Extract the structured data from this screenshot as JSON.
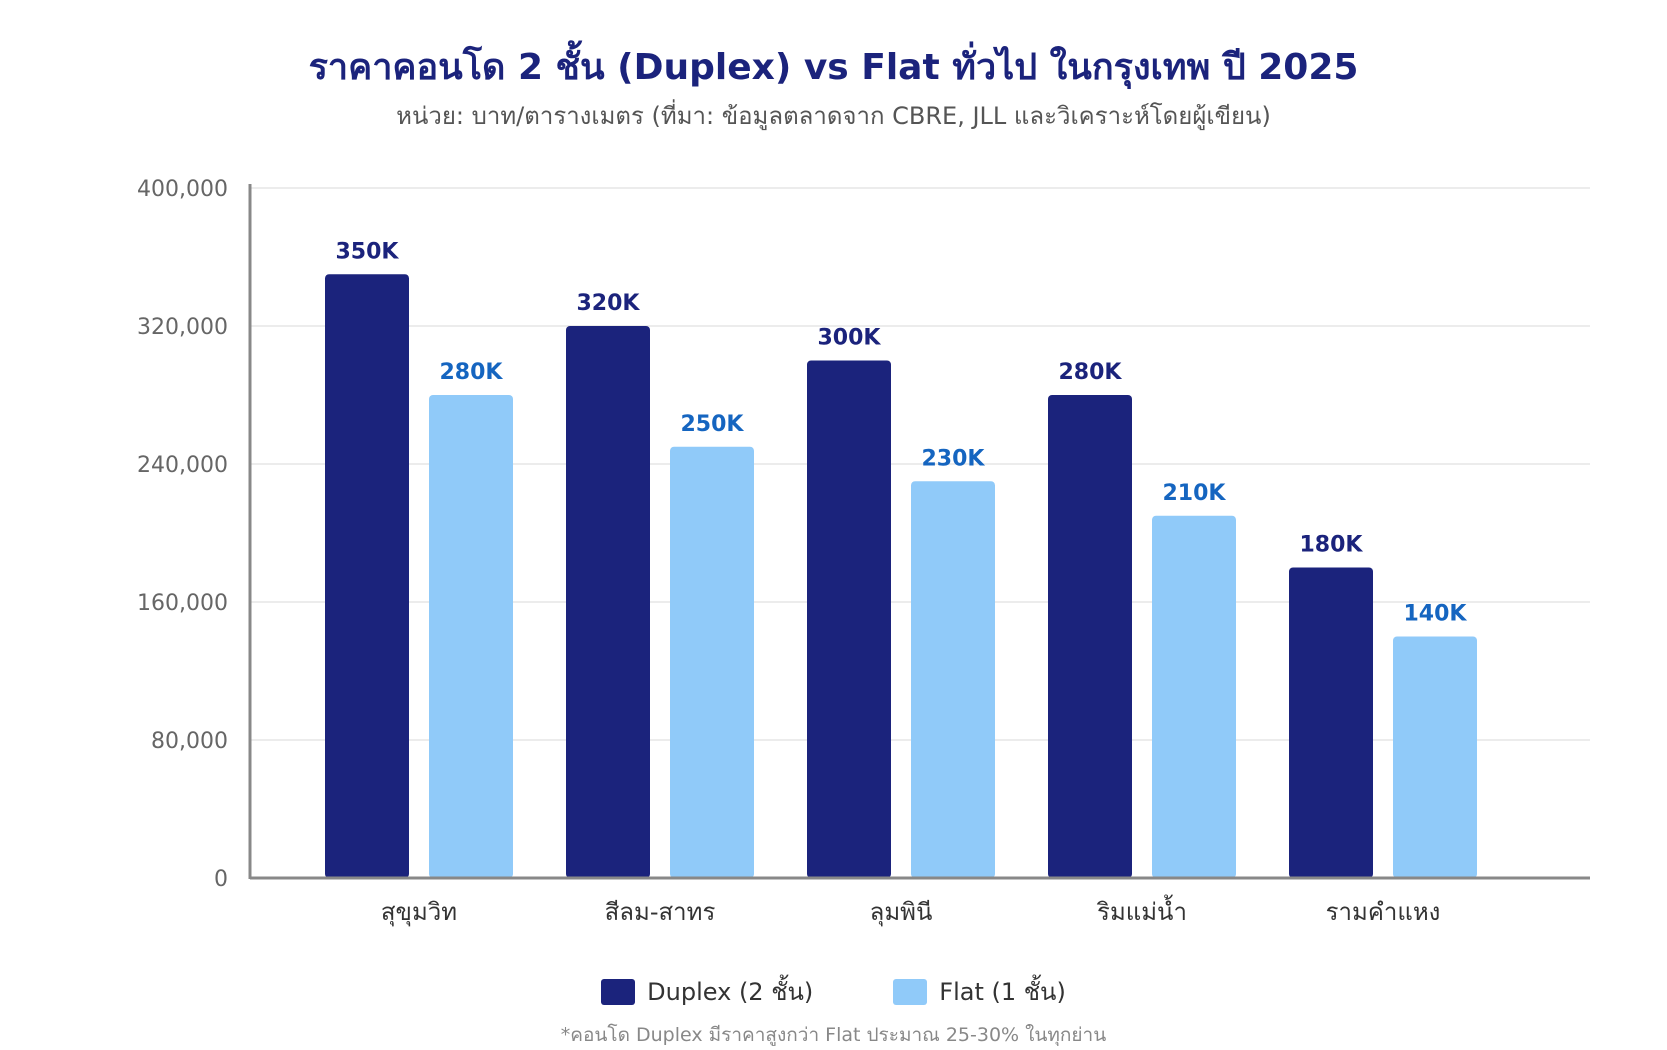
{
  "chart_data": {
    "type": "bar",
    "title": "ราคาคอนโด 2 ชั้น (Duplex) vs Flat ทั่วไป ในกรุงเทพ ปี 2025",
    "subtitle": "หน่วย: บาท/ตารางเมตร (ที่มา: ข้อมูลตลาดจาก CBRE, JLL และวิเคราะห์โดยผู้เขียน)",
    "categories": [
      "สุขุมวิท",
      "สีลม-สาทร",
      "ลุมพินี",
      "ริมแม่น้ำ",
      "รามคำแหง"
    ],
    "series": [
      {
        "name": "Duplex (2 ชั้น)",
        "values": [
          350000,
          320000,
          300000,
          280000,
          180000
        ],
        "labels": [
          "350K",
          "320K",
          "300K",
          "280K",
          "180K"
        ],
        "color": "#1b237c",
        "label_color": "#1b237c"
      },
      {
        "name": "Flat (1 ชั้น)",
        "values": [
          280000,
          250000,
          230000,
          210000,
          140000
        ],
        "labels": [
          "280K",
          "250K",
          "230K",
          "210K",
          "140K"
        ],
        "color": "#90caf9",
        "label_color": "#1565c0"
      }
    ],
    "yticks": [
      "0",
      "80,000",
      "160,000",
      "240,000",
      "320,000",
      "400,000"
    ],
    "ytick_values": [
      0,
      80000,
      160000,
      240000,
      320000,
      400000
    ],
    "ylim": [
      0,
      400000
    ],
    "grid": true,
    "legend_position": "bottom-center",
    "footnote": "*คอนโด Duplex มีราคาสูงกว่า Flat ประมาณ 25-30% ในทุกย่าน"
  }
}
